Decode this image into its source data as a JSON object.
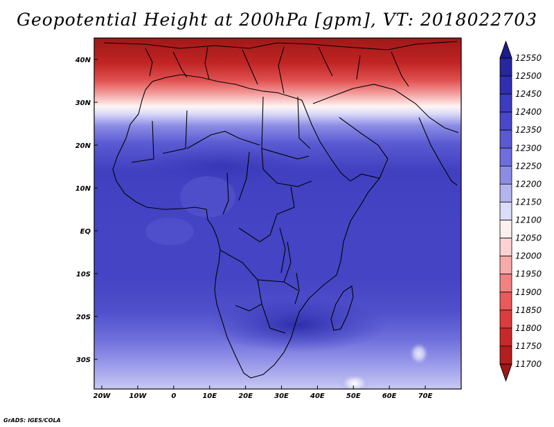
{
  "title": "Geopotential Height at 200hPa [gpm], VT: 2018022703",
  "credit": "GrADS: IGES/COLA",
  "map": {
    "lat_labels": [
      "40N",
      "30N",
      "20N",
      "10N",
      "EQ",
      "10S",
      "20S",
      "30S"
    ],
    "lon_labels": [
      "20W",
      "10W",
      "0",
      "10E",
      "20E",
      "30E",
      "40E",
      "50E",
      "60E",
      "70E"
    ]
  },
  "colorbar": {
    "levels": [
      "12550",
      "12500",
      "12450",
      "12400",
      "12350",
      "12300",
      "12250",
      "12200",
      "12150",
      "12100",
      "12050",
      "12000",
      "11950",
      "11900",
      "11850",
      "11800",
      "11750",
      "11700"
    ],
    "colors": [
      "#1c1c8c",
      "#26269e",
      "#3030ae",
      "#3c3cbe",
      "#4848c8",
      "#5a5ad2",
      "#6e6edc",
      "#8c8ce6",
      "#b4b4f0",
      "#dcdcf8",
      "#fff0f0",
      "#fcd2d2",
      "#f8aaaa",
      "#f28282",
      "#ea5a5a",
      "#dc3c3c",
      "#c82828",
      "#b41e1e",
      "#a01818"
    ]
  }
}
